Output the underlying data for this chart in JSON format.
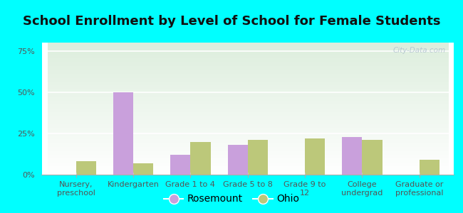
{
  "title": "School Enrollment by Level of School for Female Students",
  "categories": [
    "Nursery,\npreschool",
    "Kindergarten",
    "Grade 1 to 4",
    "Grade 5 to 8",
    "Grade 9 to\n12",
    "College\nundergrad",
    "Graduate or\nprofessional"
  ],
  "rosemount": [
    0,
    50,
    12,
    18,
    0,
    23,
    0
  ],
  "ohio": [
    8,
    7,
    20,
    21,
    22,
    21,
    9
  ],
  "rosemount_color": "#c9a0dc",
  "ohio_color": "#bcc87a",
  "background_color": "#00ffff",
  "ylim": [
    0,
    80
  ],
  "yticks": [
    0,
    25,
    50,
    75
  ],
  "ytick_labels": [
    "0%",
    "25%",
    "50%",
    "75%"
  ],
  "title_fontsize": 13,
  "tick_fontsize": 8,
  "legend_fontsize": 10,
  "bar_width": 0.35,
  "watermark": "City-Data.com"
}
